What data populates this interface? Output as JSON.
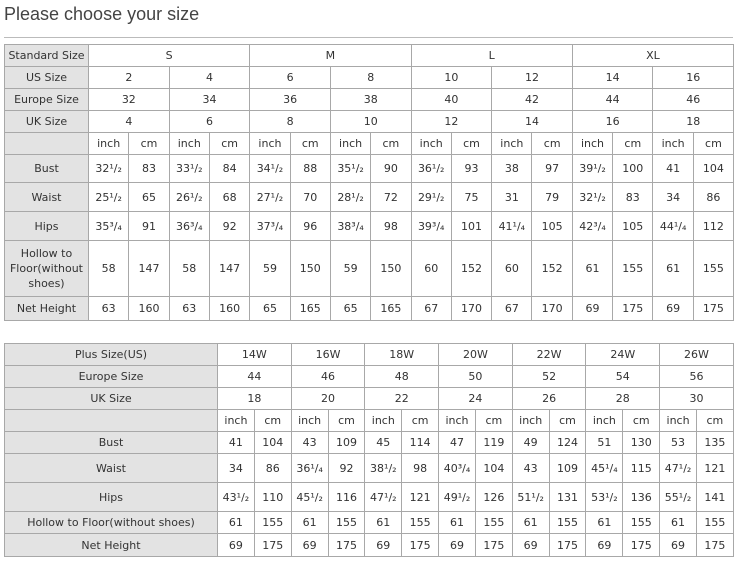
{
  "title": "Please choose your size",
  "table1": {
    "rows": [
      {
        "label": "Standard Size",
        "cells": [
          "S",
          "M",
          "L",
          "XL"
        ]
      },
      {
        "label": "US Size",
        "cells": [
          2,
          4,
          6,
          8,
          10,
          12,
          14,
          16
        ]
      },
      {
        "label": "Europe Size",
        "cells": [
          32,
          34,
          36,
          38,
          40,
          42,
          44,
          46
        ]
      },
      {
        "label": "UK Size",
        "cells": [
          4,
          6,
          8,
          10,
          12,
          14,
          16,
          18
        ]
      },
      {
        "cells": [
          "inch",
          "cm",
          "inch",
          "cm",
          "inch",
          "cm",
          "inch",
          "cm",
          "inch",
          "cm",
          "inch",
          "cm",
          "inch",
          "cm",
          "inch",
          "cm"
        ]
      },
      {
        "label": "Bust",
        "cells": [
          "32¹/₂",
          83,
          "33¹/₂",
          84,
          "34¹/₂",
          88,
          "35¹/₂",
          90,
          "36¹/₂",
          93,
          38,
          97,
          "39¹/₂",
          100,
          41,
          104
        ]
      },
      {
        "label": "Waist",
        "cells": [
          "25¹/₂",
          65,
          "26¹/₂",
          68,
          "27¹/₂",
          70,
          "28¹/₂",
          72,
          "29¹/₂",
          75,
          31,
          79,
          "32¹/₂",
          83,
          34,
          86
        ]
      },
      {
        "label": "Hips",
        "cells": [
          "35³/₄",
          91,
          "36³/₄",
          92,
          "37³/₄",
          96,
          "38³/₄",
          98,
          "39³/₄",
          101,
          "41¹/₄",
          105,
          "42³/₄",
          105,
          "44¹/₄",
          112
        ]
      },
      {
        "label": "Hollow to Floor(without shoes)",
        "cells": [
          58,
          147,
          58,
          147,
          59,
          150,
          59,
          150,
          60,
          152,
          60,
          152,
          61,
          155,
          61,
          155
        ]
      },
      {
        "label": "Net Height",
        "cells": [
          63,
          160,
          63,
          160,
          65,
          165,
          65,
          165,
          67,
          170,
          67,
          170,
          69,
          175,
          69,
          175
        ]
      }
    ]
  },
  "table2": {
    "rows": [
      {
        "label": "Plus Size(US)",
        "cells": [
          "14W",
          "16W",
          "18W",
          "20W",
          "22W",
          "24W",
          "26W"
        ]
      },
      {
        "label": "Europe Size",
        "cells": [
          44,
          46,
          48,
          50,
          52,
          54,
          56
        ]
      },
      {
        "label": "UK Size",
        "cells": [
          18,
          20,
          22,
          24,
          26,
          28,
          30
        ]
      },
      {
        "cells": [
          "inch",
          "cm",
          "inch",
          "cm",
          "inch",
          "cm",
          "inch",
          "cm",
          "inch",
          "cm",
          "inch",
          "cm",
          "inch",
          "cm"
        ]
      },
      {
        "label": "Bust",
        "cells": [
          41,
          104,
          43,
          109,
          45,
          114,
          47,
          119,
          49,
          124,
          51,
          130,
          53,
          135
        ]
      },
      {
        "label": "Waist",
        "cells": [
          34,
          86,
          "36¹/₄",
          92,
          "38¹/₂",
          98,
          "40³/₄",
          104,
          43,
          109,
          "45¹/₄",
          115,
          "47¹/₂",
          121
        ]
      },
      {
        "label": "Hips",
        "cells": [
          "43¹/₂",
          110,
          "45¹/₂",
          116,
          "47¹/₂",
          121,
          "49¹/₂",
          126,
          "51¹/₂",
          131,
          "53¹/₂",
          136,
          "55¹/₂",
          141
        ]
      },
      {
        "label": "Hollow to Floor(without shoes)",
        "cells": [
          61,
          155,
          61,
          155,
          61,
          155,
          61,
          155,
          61,
          155,
          61,
          155,
          61,
          155
        ]
      },
      {
        "label": "Net Height",
        "cells": [
          69,
          175,
          69,
          175,
          69,
          175,
          69,
          175,
          69,
          175,
          69,
          175,
          69,
          175
        ]
      }
    ]
  }
}
